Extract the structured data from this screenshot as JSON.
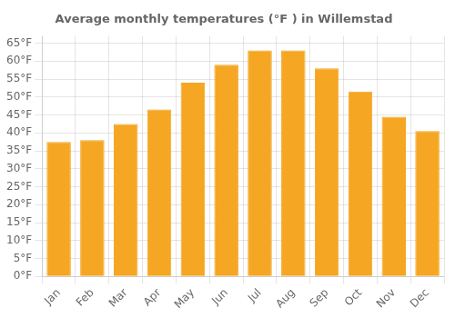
{
  "chart_data": {
    "type": "bar",
    "title": "Average monthly temperatures (°F ) in Willemstad",
    "categories": [
      "Jan",
      "Feb",
      "Mar",
      "Apr",
      "May",
      "Jun",
      "Jul",
      "Aug",
      "Sep",
      "Oct",
      "Nov",
      "Dec"
    ],
    "values": [
      37.5,
      38.0,
      42.5,
      46.5,
      54.0,
      59.0,
      63.0,
      63.0,
      58.0,
      51.5,
      44.5,
      40.5
    ],
    "color": "#F5A623",
    "ylim": [
      0,
      67
    ],
    "yticks": [
      {
        "value": 0,
        "label": "0°F"
      },
      {
        "value": 5,
        "label": "5°F"
      },
      {
        "value": 10,
        "label": "10°F"
      },
      {
        "value": 15,
        "label": "15°F"
      },
      {
        "value": 20,
        "label": "20°F"
      },
      {
        "value": 25,
        "label": "25°F"
      },
      {
        "value": 30,
        "label": "30°F"
      },
      {
        "value": 35,
        "label": "35°F"
      },
      {
        "value": 40,
        "label": "40°F"
      },
      {
        "value": 45,
        "label": "45°F"
      },
      {
        "value": 50,
        "label": "50°F"
      },
      {
        "value": 55,
        "label": "55°F"
      },
      {
        "value": 60,
        "label": "60°F"
      },
      {
        "value": 65,
        "label": "65°F"
      }
    ],
    "grid": true
  }
}
